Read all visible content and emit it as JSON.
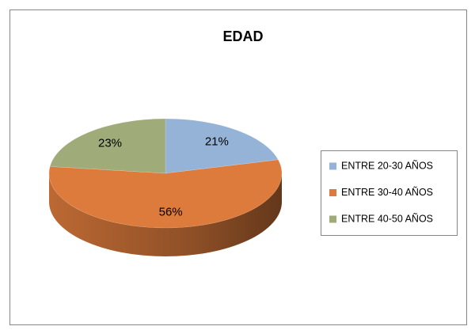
{
  "chart_data": {
    "type": "pie3d",
    "title": "EDAD",
    "categories": [
      "ENTRE 20-30 AÑOS",
      "ENTRE 30-40 AÑOS",
      "ENTRE 40-50 AÑOS"
    ],
    "values": [
      21,
      56,
      23
    ],
    "value_labels": [
      "21%",
      "56%",
      "23%"
    ],
    "colors": [
      "#95b3d7",
      "#dd7b3c",
      "#9fab78"
    ],
    "legend": "right"
  }
}
